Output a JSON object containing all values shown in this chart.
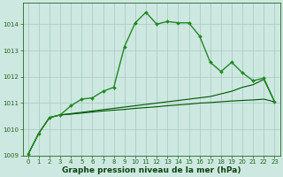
{
  "bg_color": "#cce8e0",
  "grid_color": "#a8c8c0",
  "line_color_main": "#005500",
  "line_color_light": "#228822",
  "xlabel": "Graphe pression niveau de la mer (hPa)",
  "ylim": [
    1009,
    1014.8
  ],
  "xlim": [
    -0.5,
    23.5
  ],
  "yticks": [
    1009,
    1010,
    1011,
    1012,
    1013,
    1014
  ],
  "xticks": [
    0,
    1,
    2,
    3,
    4,
    5,
    6,
    7,
    8,
    9,
    10,
    11,
    12,
    13,
    14,
    15,
    16,
    17,
    18,
    19,
    20,
    21,
    22,
    23
  ],
  "series1_x": [
    0,
    1,
    2,
    3,
    4,
    5,
    6,
    7,
    8,
    9,
    10,
    11,
    12,
    13,
    14,
    15,
    16,
    17,
    18,
    19,
    20,
    21,
    22,
    23
  ],
  "series1_y": [
    1009.05,
    1009.85,
    1010.45,
    1010.55,
    1010.9,
    1011.15,
    1011.2,
    1011.45,
    1011.6,
    1013.15,
    1014.05,
    1014.45,
    1014.0,
    1014.1,
    1014.05,
    1014.05,
    1013.55,
    1012.55,
    1012.2,
    1012.55,
    1012.15,
    1011.85,
    1011.95,
    1011.05
  ],
  "series2_x": [
    0,
    1,
    2,
    3,
    4,
    5,
    6,
    7,
    8,
    9,
    10,
    11,
    12,
    13,
    14,
    15,
    16,
    17,
    18,
    19,
    20,
    21,
    22,
    23
  ],
  "series2_y": [
    1009.05,
    1009.85,
    1010.45,
    1010.55,
    1010.6,
    1010.65,
    1010.7,
    1010.75,
    1010.8,
    1010.85,
    1010.9,
    1010.95,
    1011.0,
    1011.05,
    1011.1,
    1011.15,
    1011.2,
    1011.25,
    1011.35,
    1011.45,
    1011.6,
    1011.7,
    1011.9,
    1011.05
  ],
  "series3_x": [
    0,
    1,
    2,
    3,
    4,
    5,
    6,
    7,
    8,
    9,
    10,
    11,
    12,
    13,
    14,
    15,
    16,
    17,
    18,
    19,
    20,
    21,
    22,
    23
  ],
  "series3_y": [
    1009.05,
    1009.85,
    1010.45,
    1010.55,
    1010.58,
    1010.62,
    1010.66,
    1010.7,
    1010.73,
    1010.76,
    1010.8,
    1010.83,
    1010.86,
    1010.9,
    1010.93,
    1010.96,
    1011.0,
    1011.02,
    1011.05,
    1011.08,
    1011.1,
    1011.12,
    1011.15,
    1011.05
  ],
  "marker": "D",
  "markersize": 2.0,
  "lw1": 1.0,
  "lw2": 0.8,
  "lw3": 0.8,
  "xlabel_fontsize": 6.5,
  "tick_fontsize": 5.0,
  "tick_color": "#226622",
  "xlabel_color": "#114411",
  "xlabel_fontweight": "bold"
}
